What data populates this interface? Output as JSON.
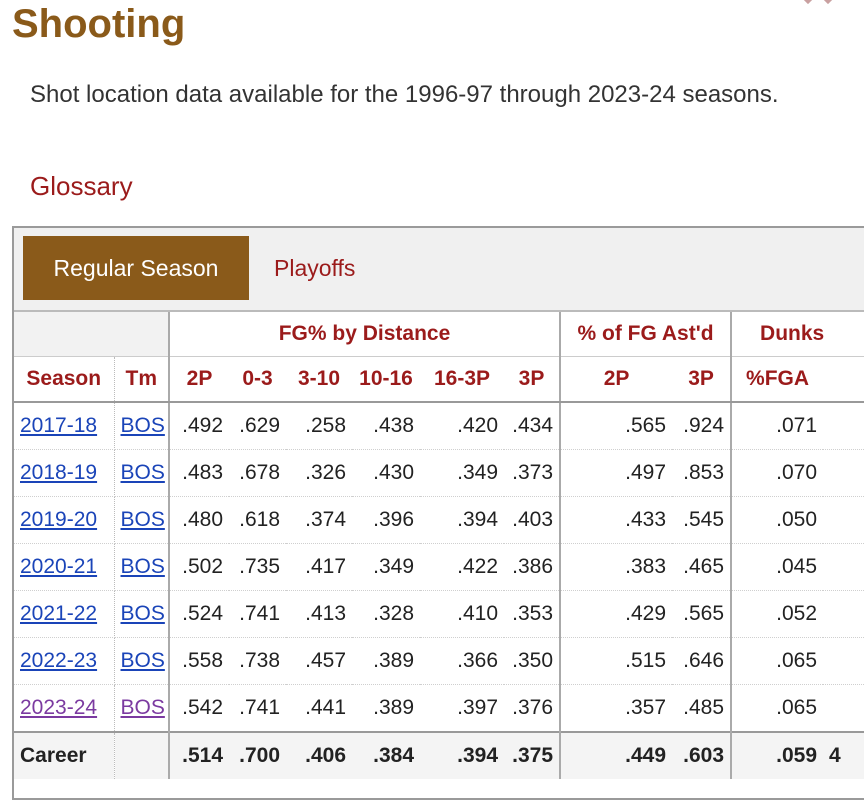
{
  "section": {
    "title": "Shooting",
    "description": "Shot location data available for the 1996-97 through 2023-24 seasons.",
    "glossary": "Glossary"
  },
  "tabs": {
    "regular": "Regular Season",
    "playoffs": "Playoffs"
  },
  "table": {
    "groups": {
      "fg_by_distance": "FG% by Distance",
      "ast": "% of FG Ast'd",
      "dunks": "Dunks"
    },
    "columns": [
      "Season",
      "Tm",
      "2P",
      "0-3",
      "3-10",
      "10-16",
      "16-3P",
      "3P",
      "2P",
      "3P",
      "%FGA"
    ],
    "rows": [
      {
        "season": "2017-18",
        "tm": "BOS",
        "fg2p": ".492",
        "d03": ".629",
        "d310": ".258",
        "d1016": ".438",
        "d163p": ".420",
        "fg3p": ".434",
        "ast2p": ".565",
        "ast3p": ".924",
        "dunk": ".071"
      },
      {
        "season": "2018-19",
        "tm": "BOS",
        "fg2p": ".483",
        "d03": ".678",
        "d310": ".326",
        "d1016": ".430",
        "d163p": ".349",
        "fg3p": ".373",
        "ast2p": ".497",
        "ast3p": ".853",
        "dunk": ".070"
      },
      {
        "season": "2019-20",
        "tm": "BOS",
        "fg2p": ".480",
        "d03": ".618",
        "d310": ".374",
        "d1016": ".396",
        "d163p": ".394",
        "fg3p": ".403",
        "ast2p": ".433",
        "ast3p": ".545",
        "dunk": ".050"
      },
      {
        "season": "2020-21",
        "tm": "BOS",
        "fg2p": ".502",
        "d03": ".735",
        "d310": ".417",
        "d1016": ".349",
        "d163p": ".422",
        "fg3p": ".386",
        "ast2p": ".383",
        "ast3p": ".465",
        "dunk": ".045"
      },
      {
        "season": "2021-22",
        "tm": "BOS",
        "fg2p": ".524",
        "d03": ".741",
        "d310": ".413",
        "d1016": ".328",
        "d163p": ".410",
        "fg3p": ".353",
        "ast2p": ".429",
        "ast3p": ".565",
        "dunk": ".052"
      },
      {
        "season": "2022-23",
        "tm": "BOS",
        "fg2p": ".558",
        "d03": ".738",
        "d310": ".457",
        "d1016": ".389",
        "d163p": ".366",
        "fg3p": ".350",
        "ast2p": ".515",
        "ast3p": ".646",
        "dunk": ".065"
      },
      {
        "season": "2023-24",
        "tm": "BOS",
        "fg2p": ".542",
        "d03": ".741",
        "d310": ".441",
        "d1016": ".389",
        "d163p": ".397",
        "fg3p": ".376",
        "ast2p": ".357",
        "ast3p": ".485",
        "dunk": ".065"
      }
    ],
    "career": {
      "label": "Career",
      "fg2p": ".514",
      "d03": ".700",
      "d310": ".406",
      "d1016": ".384",
      "d163p": ".394",
      "fg3p": ".375",
      "ast2p": ".449",
      "ast3p": ".603",
      "dunk": ".059",
      "next_partial": "4"
    }
  },
  "colors": {
    "title": "#8a5a1a",
    "active_tab_bg": "#8a5a1a",
    "header_text": "#9b1b1b",
    "link": "#1a44b8",
    "visited_link": "#7b3aa0"
  },
  "icons": [
    "chevron-down-icon"
  ]
}
